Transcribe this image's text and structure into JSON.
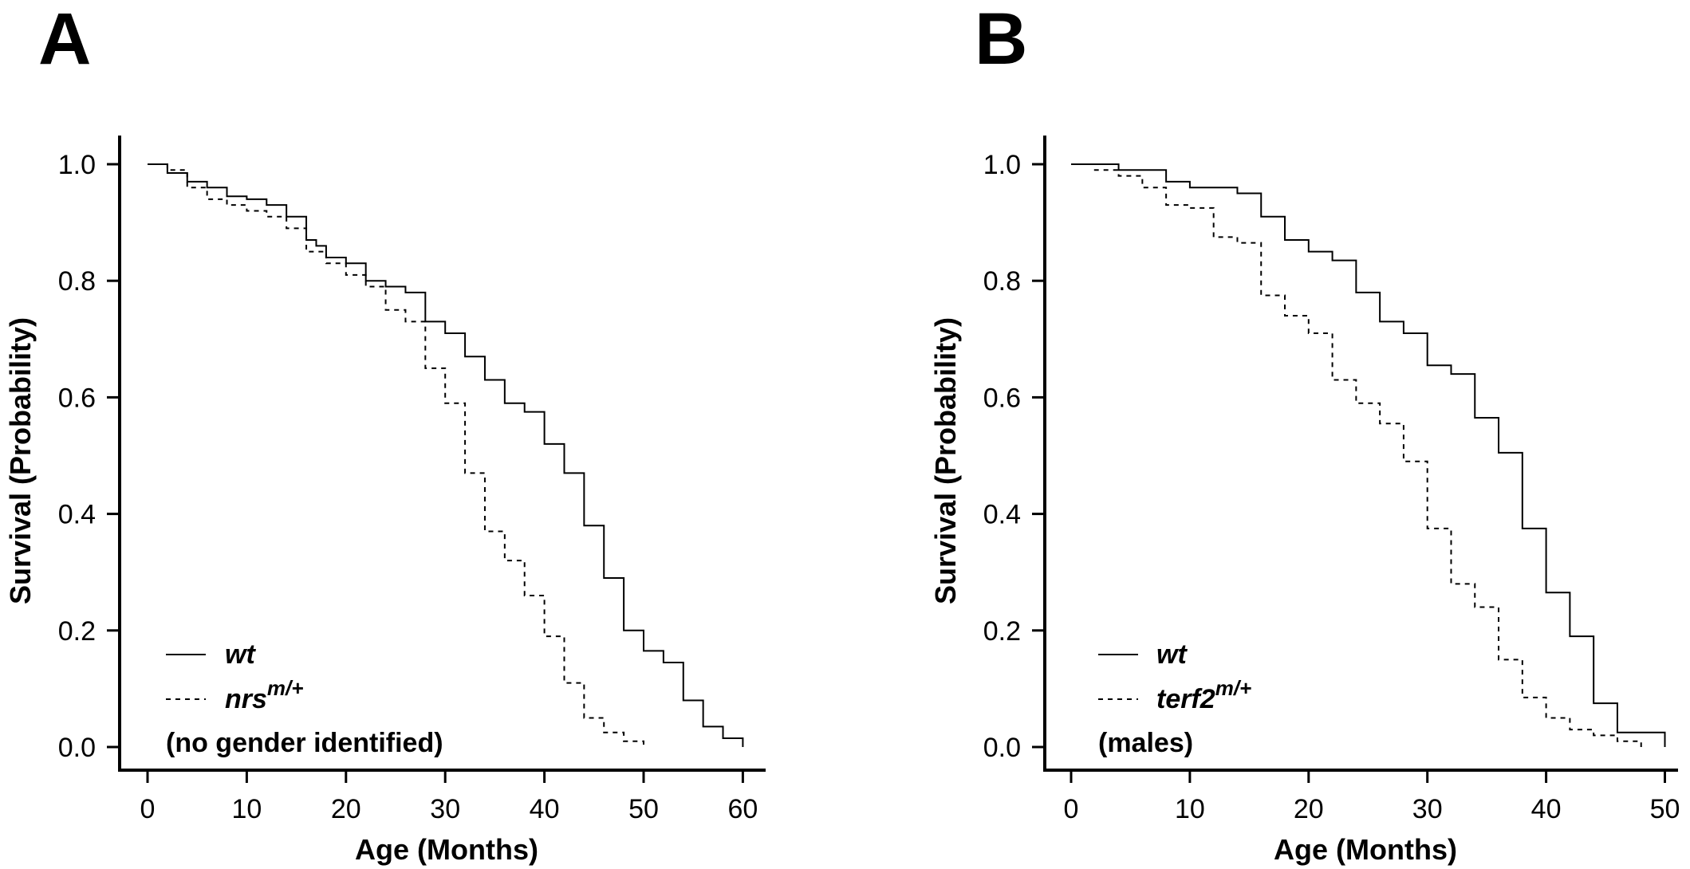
{
  "chart_data": [
    {
      "type": "line",
      "step": true,
      "panel_label": "A",
      "xlabel": "Age (Months)",
      "ylabel": "Survival (Probability)",
      "xlim": [
        0,
        62
      ],
      "ylim": [
        0,
        1.05
      ],
      "xticks": [
        0,
        10,
        20,
        30,
        40,
        50,
        60
      ],
      "yticks": [
        "0.0",
        "0.2",
        "0.4",
        "0.6",
        "0.8",
        "1.0"
      ],
      "legend_position": "bottom-left",
      "legend_note": "(no gender identified)",
      "series": [
        {
          "name": "wt",
          "line_style": "solid",
          "x": [
            0,
            2,
            4,
            6,
            8,
            10,
            12,
            14,
            16,
            17,
            18,
            20,
            22,
            24,
            26,
            28,
            30,
            32,
            34,
            36,
            38,
            40,
            42,
            44,
            46,
            48,
            50,
            52,
            54,
            56,
            58,
            60
          ],
          "y": [
            1.0,
            0.985,
            0.97,
            0.96,
            0.945,
            0.94,
            0.93,
            0.91,
            0.87,
            0.86,
            0.84,
            0.83,
            0.8,
            0.79,
            0.78,
            0.73,
            0.71,
            0.67,
            0.63,
            0.59,
            0.575,
            0.52,
            0.47,
            0.38,
            0.29,
            0.2,
            0.165,
            0.145,
            0.08,
            0.035,
            0.015,
            0.0
          ]
        },
        {
          "name": "nrs",
          "name_sup": "m/+",
          "line_style": "dashed",
          "x": [
            0,
            2,
            4,
            6,
            8,
            10,
            12,
            14,
            16,
            18,
            20,
            22,
            24,
            26,
            28,
            29,
            30,
            32,
            34,
            36,
            38,
            40,
            42,
            44,
            46,
            48,
            50
          ],
          "y": [
            1.0,
            0.99,
            0.96,
            0.94,
            0.93,
            0.92,
            0.91,
            0.89,
            0.85,
            0.83,
            0.81,
            0.79,
            0.75,
            0.73,
            0.65,
            0.65,
            0.59,
            0.47,
            0.37,
            0.32,
            0.26,
            0.19,
            0.11,
            0.05,
            0.025,
            0.01,
            0.0
          ]
        }
      ]
    },
    {
      "type": "line",
      "step": true,
      "panel_label": "B",
      "xlabel": "Age (Months)",
      "ylabel": "Survival (Probability)",
      "xlim": [
        0,
        52
      ],
      "ylim": [
        0,
        1.05
      ],
      "xticks": [
        0,
        10,
        20,
        30,
        40,
        50
      ],
      "yticks": [
        "0.0",
        "0.2",
        "0.4",
        "0.6",
        "0.8",
        "1.0"
      ],
      "legend_position": "bottom-left",
      "legend_note": "(males)",
      "series": [
        {
          "name": "wt",
          "line_style": "solid",
          "x": [
            0,
            4,
            8,
            10,
            14,
            16,
            18,
            20,
            22,
            24,
            26,
            28,
            30,
            32,
            34,
            36,
            38,
            40,
            42,
            44,
            46,
            48,
            50
          ],
          "y": [
            1.0,
            0.99,
            0.97,
            0.96,
            0.95,
            0.91,
            0.87,
            0.85,
            0.835,
            0.78,
            0.73,
            0.71,
            0.655,
            0.64,
            0.565,
            0.505,
            0.375,
            0.265,
            0.19,
            0.075,
            0.025,
            0.025,
            0.0
          ]
        },
        {
          "name": "terf2",
          "name_sup": "m/+",
          "line_style": "dashed",
          "x": [
            0,
            2,
            4,
            6,
            8,
            10,
            12,
            14,
            16,
            18,
            20,
            22,
            24,
            26,
            28,
            30,
            32,
            34,
            36,
            38,
            40,
            42,
            44,
            46,
            48
          ],
          "y": [
            1.0,
            0.99,
            0.98,
            0.96,
            0.93,
            0.925,
            0.875,
            0.865,
            0.775,
            0.74,
            0.71,
            0.63,
            0.59,
            0.555,
            0.49,
            0.375,
            0.28,
            0.24,
            0.15,
            0.085,
            0.05,
            0.03,
            0.02,
            0.01,
            0.0
          ]
        }
      ]
    }
  ]
}
